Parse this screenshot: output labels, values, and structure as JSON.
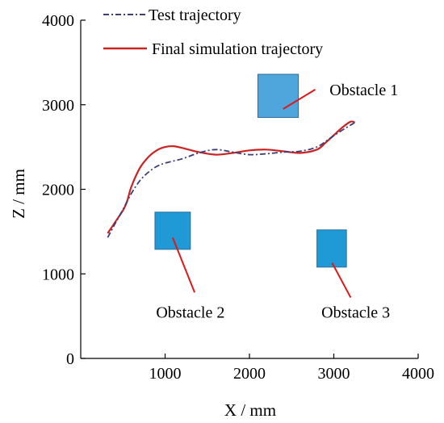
{
  "chart_data": {
    "type": "line",
    "xlabel": "X / mm",
    "ylabel": "Z / mm",
    "xlim": [
      0,
      4000
    ],
    "ylim": [
      0,
      4000
    ],
    "xticks": [
      "1000",
      "2000",
      "3000",
      "4000"
    ],
    "yticks": [
      "0",
      "1000",
      "2000",
      "3000",
      "4000"
    ],
    "legend_position": "top-left",
    "series": [
      {
        "name": "Test trajectory",
        "style": "dash-dot",
        "color": "#3d3d7a",
        "x": [
          320,
          400,
          500,
          600,
          700,
          800,
          900,
          1000,
          1200,
          1400,
          1600,
          1800,
          2000,
          2200,
          2400,
          2600,
          2800,
          2950,
          3100,
          3200,
          3250
        ],
        "y": [
          1430,
          1580,
          1760,
          1950,
          2100,
          2200,
          2270,
          2310,
          2360,
          2430,
          2470,
          2440,
          2410,
          2420,
          2440,
          2450,
          2500,
          2600,
          2700,
          2760,
          2790
        ]
      },
      {
        "name": "Final simulation trajectory",
        "style": "solid",
        "color": "#cc2222",
        "x": [
          320,
          400,
          500,
          550,
          600,
          700,
          800,
          900,
          1000,
          1100,
          1200,
          1400,
          1600,
          1800,
          2000,
          2200,
          2400,
          2600,
          2800,
          2900,
          3000,
          3100,
          3200,
          3250
        ],
        "y": [
          1480,
          1600,
          1750,
          1860,
          2030,
          2250,
          2380,
          2460,
          2500,
          2510,
          2490,
          2440,
          2410,
          2430,
          2460,
          2470,
          2450,
          2430,
          2470,
          2550,
          2640,
          2730,
          2800,
          2790
        ]
      }
    ],
    "obstacles": [
      {
        "label": "Obstacle 1",
        "x0": 2100,
        "x1": 2580,
        "y0": 2850,
        "y1": 3360,
        "color": "#4ea6dc",
        "leader_from": [
          2400,
          2950
        ],
        "leader_to": [
          2780,
          3180
        ]
      },
      {
        "label": "Obstacle 2",
        "x0": 880,
        "x1": 1300,
        "y0": 1290,
        "y1": 1730,
        "color": "#1f9ad6",
        "leader_from": [
          1090,
          1430
        ],
        "leader_to": [
          1350,
          780
        ]
      },
      {
        "label": "Obstacle 3",
        "x0": 2800,
        "x1": 3150,
        "y0": 1080,
        "y1": 1520,
        "color": "#1f9ad6",
        "leader_from": [
          2980,
          1130
        ],
        "leader_to": [
          3200,
          720
        ]
      }
    ],
    "annotations": [
      {
        "text": "Obstacle 1",
        "x": 2950,
        "y": 3180,
        "anchor": "start"
      },
      {
        "text": "Obstacle 2",
        "x": 1300,
        "y": 550,
        "anchor": "middle"
      },
      {
        "text": "Obstacle 3",
        "x": 3260,
        "y": 550,
        "anchor": "middle"
      }
    ],
    "grid": false
  }
}
